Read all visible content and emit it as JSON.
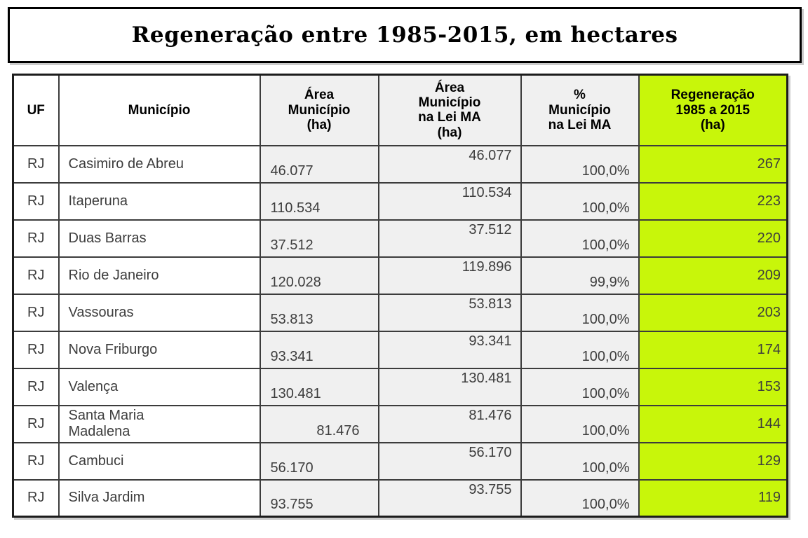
{
  "title": "Regeneração entre 1985-2015, em hectares",
  "table": {
    "columns": [
      {
        "id": "uf",
        "label": "UF"
      },
      {
        "id": "municipio",
        "label": "Município"
      },
      {
        "id": "area_municipio",
        "label": "Área\nMunicípio\n(ha)"
      },
      {
        "id": "area_lei_ma",
        "label": "Área\nMunicípio\nna Lei MA\n(ha)"
      },
      {
        "id": "pct_lei_ma",
        "label": "%\nMunicípio\nna Lei MA"
      },
      {
        "id": "regeneracao",
        "label": "Regeneração\n1985 a 2015\n(ha)"
      }
    ],
    "rows": [
      {
        "uf": "RJ",
        "municipio": "Casimiro de Abreu",
        "area_municipio": "46.077",
        "area_lei_ma": "46.077",
        "pct_lei_ma": "100,0%",
        "regeneracao": "267",
        "area_align": "left"
      },
      {
        "uf": "RJ",
        "municipio": "Itaperuna",
        "area_municipio": "110.534",
        "area_lei_ma": "110.534",
        "pct_lei_ma": "100,0%",
        "regeneracao": "223",
        "area_align": "left"
      },
      {
        "uf": "RJ",
        "municipio": "Duas Barras",
        "area_municipio": "37.512",
        "area_lei_ma": "37.512",
        "pct_lei_ma": "100,0%",
        "regeneracao": "220",
        "area_align": "left"
      },
      {
        "uf": "RJ",
        "municipio": "Rio de Janeiro",
        "area_municipio": "120.028",
        "area_lei_ma": "119.896",
        "pct_lei_ma": "99,9%",
        "regeneracao": "209",
        "area_align": "left"
      },
      {
        "uf": "RJ",
        "municipio": "Vassouras",
        "area_municipio": "53.813",
        "area_lei_ma": "53.813",
        "pct_lei_ma": "100,0%",
        "regeneracao": "203",
        "area_align": "left"
      },
      {
        "uf": "RJ",
        "municipio": "Nova Friburgo",
        "area_municipio": "93.341",
        "area_lei_ma": "93.341",
        "pct_lei_ma": "100,0%",
        "regeneracao": "174",
        "area_align": "left"
      },
      {
        "uf": "RJ",
        "municipio": "Valença",
        "area_municipio": "130.481",
        "area_lei_ma": "130.481",
        "pct_lei_ma": "100,0%",
        "regeneracao": "153",
        "area_align": "left"
      },
      {
        "uf": "RJ",
        "municipio": "Santa Maria\nMadalena",
        "area_municipio": "81.476",
        "area_lei_ma": "81.476",
        "pct_lei_ma": "100,0%",
        "regeneracao": "144",
        "area_align": "right"
      },
      {
        "uf": "RJ",
        "municipio": "Cambuci",
        "area_municipio": "56.170",
        "area_lei_ma": "56.170",
        "pct_lei_ma": "100,0%",
        "regeneracao": "129",
        "area_align": "left"
      },
      {
        "uf": "RJ",
        "municipio": "Silva Jardim",
        "area_municipio": "93.755",
        "area_lei_ma": "93.755",
        "pct_lei_ma": "100,0%",
        "regeneracao": "119",
        "area_align": "left"
      }
    ]
  },
  "colors": {
    "highlight_green": "#c8f60a",
    "cell_gray": "#f0f0f0",
    "grid_line": "#3c3c3c",
    "text_dark": "#3d3d3d"
  }
}
